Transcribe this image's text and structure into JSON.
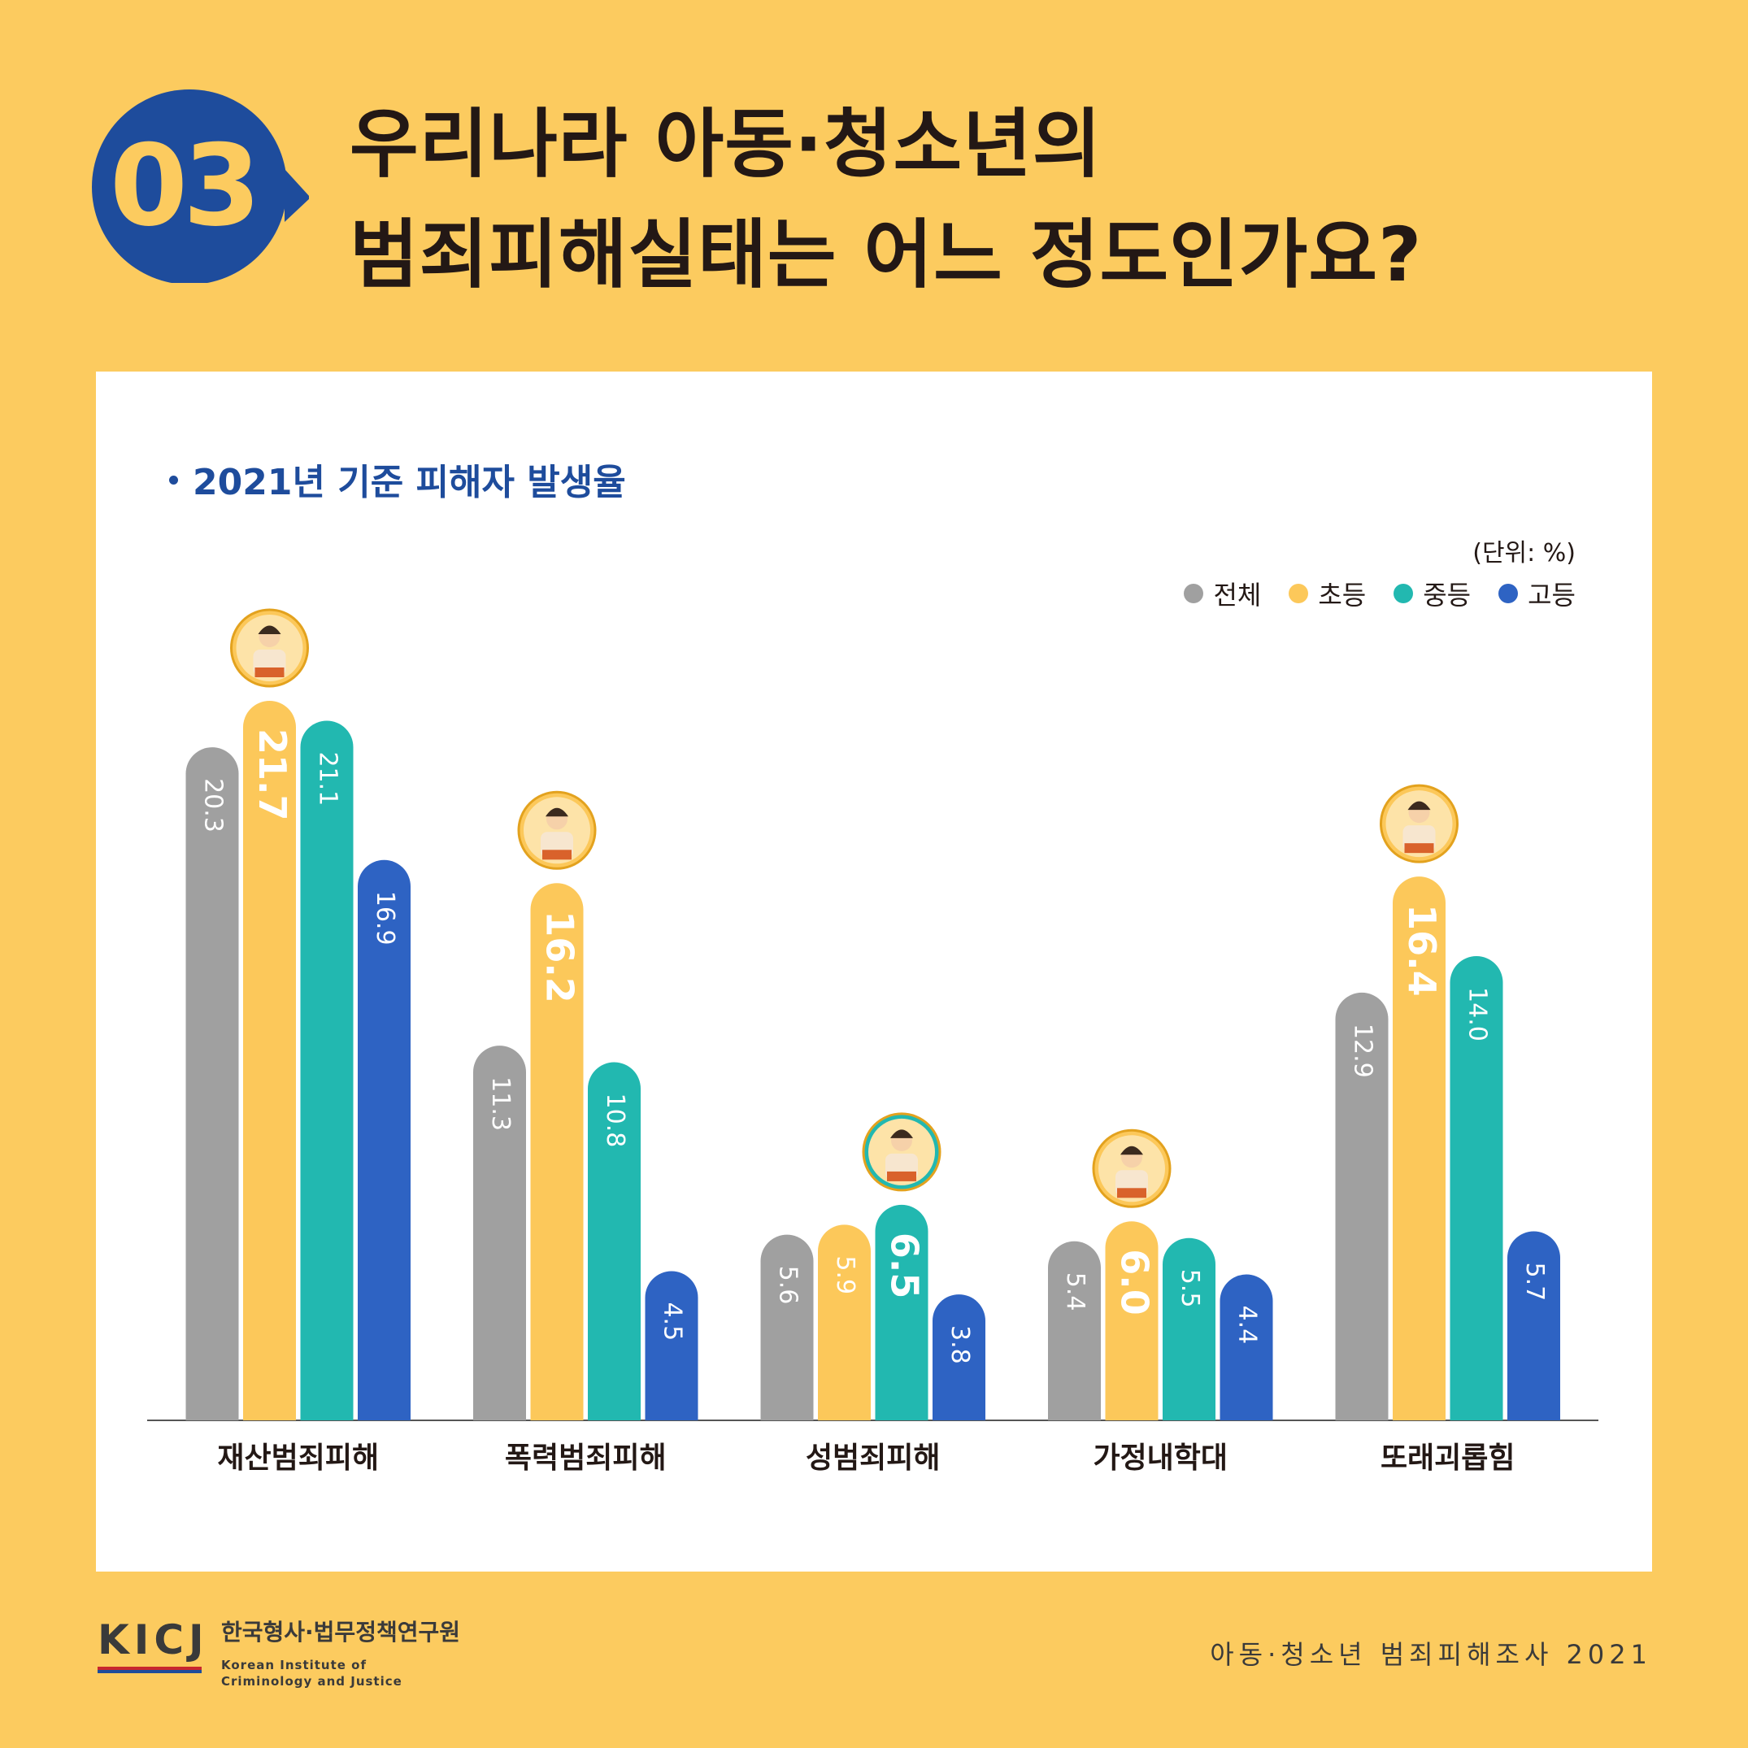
{
  "badge": {
    "number": "03"
  },
  "title": {
    "line1": "우리나라 아동·청소년의",
    "line2": "범죄피해실태는 어느 정도인가요?"
  },
  "panel": {
    "subtitle": "2021년 기준 피해자 발생율",
    "unit": "(단위: %)"
  },
  "colors": {
    "background": "#FCCB5F",
    "navy": "#1E4C9C",
    "total": "#A0A0A0",
    "elementary": "#FCC85A",
    "middle": "#22B8B0",
    "high": "#2E63C3"
  },
  "chart_data": {
    "type": "bar",
    "title": "2021년 기준 피해자 발생율",
    "unit": "(단위: %)",
    "categories": [
      "재산범죄피해",
      "폭력범죄피해",
      "성범죄피해",
      "가정내학대",
      "또래괴롭힘"
    ],
    "series": [
      {
        "name": "전체",
        "color": "#A0A0A0",
        "values": [
          20.3,
          11.3,
          5.6,
          5.4,
          12.9
        ],
        "labels": [
          "20.3",
          "11.3",
          "5.6",
          "5.4",
          "12.9"
        ]
      },
      {
        "name": "초등",
        "color": "#FCC85A",
        "values": [
          21.7,
          16.2,
          5.9,
          6.0,
          16.4
        ],
        "labels": [
          "21.7",
          "16.2",
          "5.9",
          "6.0",
          "16.4"
        ]
      },
      {
        "name": "중등",
        "color": "#22B8B0",
        "values": [
          21.1,
          10.8,
          6.5,
          5.5,
          14.0
        ],
        "labels": [
          "21.1",
          "10.8",
          "6.5",
          "5.5",
          "14.0"
        ]
      },
      {
        "name": "고등",
        "color": "#2E63C3",
        "values": [
          16.9,
          4.5,
          3.8,
          4.4,
          5.7
        ],
        "labels": [
          "16.9",
          "4.5",
          "3.8",
          "4.4",
          "5.7"
        ]
      }
    ],
    "highlight_series_index": [
      1,
      1,
      2,
      1,
      1
    ],
    "legend_position": "top-right",
    "grid": false
  },
  "footer": {
    "logo_mark": "KICJ",
    "org_korean": "한국형사·법무정책연구원",
    "org_english_line1": "Korean Institute of",
    "org_english_line2": "Criminology and Justice",
    "right_text": "아동·청소년 범죄피해조사 2021"
  }
}
